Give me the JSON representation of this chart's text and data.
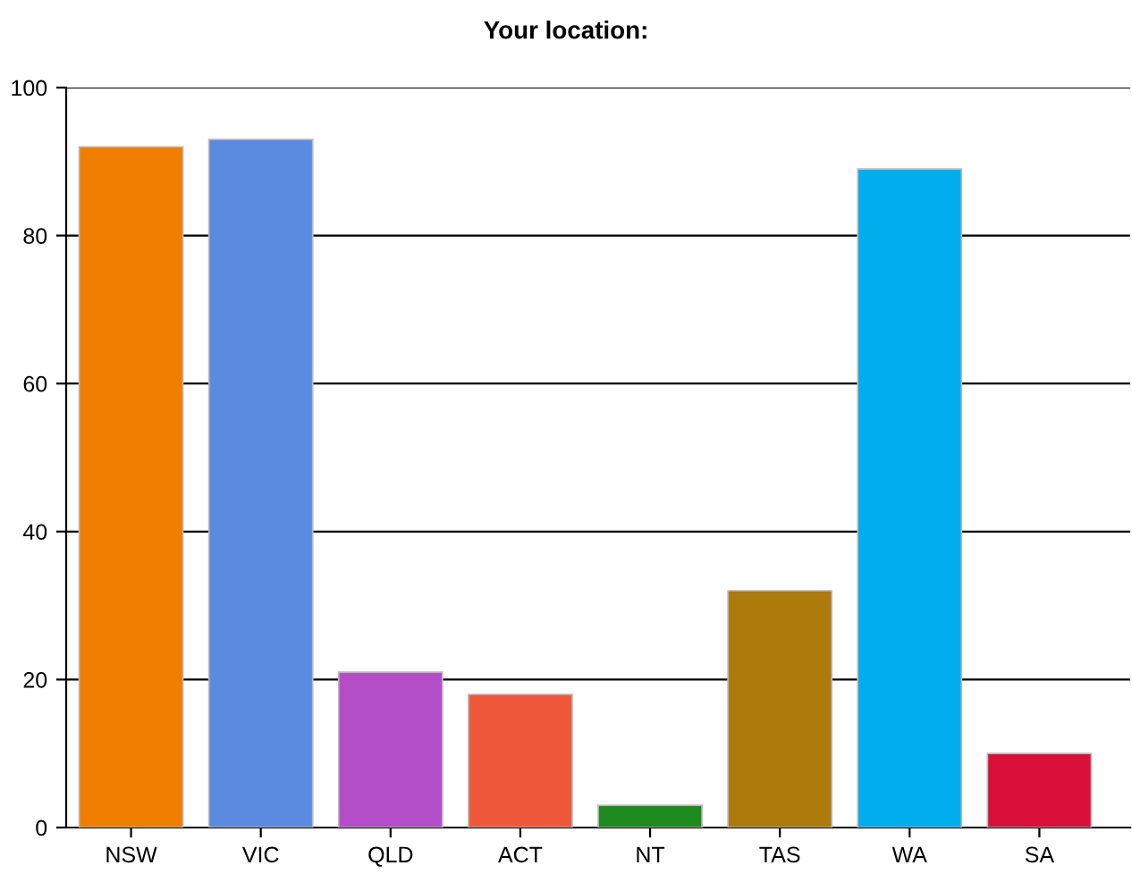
{
  "chart_data": {
    "type": "bar",
    "title": "Your location:",
    "categories": [
      "NSW",
      "VIC",
      "QLD",
      "ACT",
      "NT",
      "TAS",
      "WA",
      "SA"
    ],
    "values": [
      92,
      93,
      21,
      18,
      3,
      32,
      89,
      10
    ],
    "colors": [
      "#f07f00",
      "#5b8be0",
      "#b44ec8",
      "#f0583c",
      "#1e8a1e",
      "#ad7a0c",
      "#00aeee",
      "#d8103a"
    ],
    "ylim": [
      0,
      100
    ],
    "yticks": [
      0,
      20,
      40,
      60,
      80,
      100
    ],
    "grid": "y",
    "legend": false
  }
}
